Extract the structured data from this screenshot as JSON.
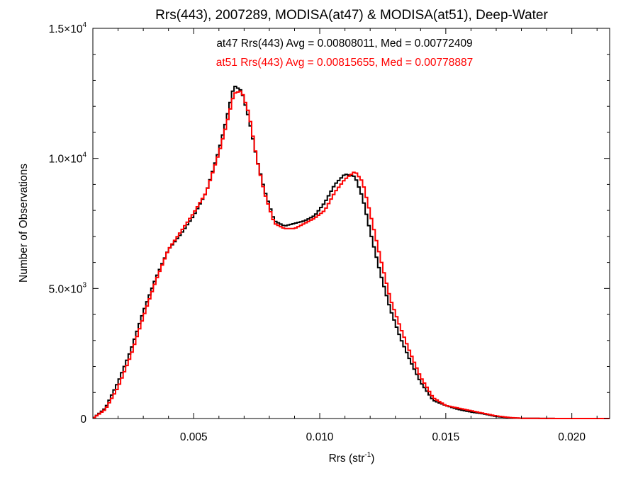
{
  "chart_data": {
    "type": "line",
    "title": "Rrs(443), 2007289, MODISA(at47) & MODISA(at51), Deep-Water",
    "xlabel_base": "Rrs (str",
    "xlabel_sup": "-1",
    "xlabel_tail": ")",
    "ylabel": "Number of Observations",
    "xlim": [
      0.001,
      0.0215
    ],
    "ylim": [
      0,
      15000
    ],
    "x_ticks": [
      {
        "value": 0.005,
        "label": "0.005"
      },
      {
        "value": 0.01,
        "label": "0.010"
      },
      {
        "value": 0.015,
        "label": "0.015"
      },
      {
        "value": 0.02,
        "label": "0.020"
      }
    ],
    "y_ticks": [
      {
        "value": 0,
        "base": "0",
        "exp": ""
      },
      {
        "value": 5000,
        "base": "5.0×10",
        "exp": "3"
      },
      {
        "value": 10000,
        "base": "1.0×10",
        "exp": "4"
      },
      {
        "value": 15000,
        "base": "1.5×10",
        "exp": "4"
      }
    ],
    "grid": false,
    "series": [
      {
        "name": "at47",
        "color": "#000000",
        "stats": "at47 Rrs(443) Avg = 0.00808011, Med = 0.00772409",
        "x": [
          0.001,
          0.0015,
          0.002,
          0.0025,
          0.003,
          0.0035,
          0.004,
          0.0045,
          0.005,
          0.0055,
          0.006,
          0.0063,
          0.0066,
          0.0069,
          0.0072,
          0.0075,
          0.0078,
          0.0082,
          0.0086,
          0.009,
          0.0094,
          0.0098,
          0.0102,
          0.0106,
          0.011,
          0.0114,
          0.0117,
          0.012,
          0.0124,
          0.0128,
          0.0132,
          0.0136,
          0.014,
          0.0145,
          0.015,
          0.0155,
          0.016,
          0.0165,
          0.017,
          0.0175,
          0.018,
          0.0185,
          0.019,
          0.02,
          0.0215
        ],
        "y": [
          0,
          400,
          1400,
          2600,
          4100,
          5400,
          6500,
          7100,
          7800,
          8700,
          10300,
          11500,
          12800,
          12600,
          11500,
          10000,
          8800,
          7600,
          7400,
          7500,
          7600,
          7800,
          8300,
          9000,
          9400,
          9300,
          8500,
          7200,
          5600,
          4200,
          3100,
          2200,
          1400,
          700,
          500,
          350,
          250,
          180,
          80,
          30,
          10,
          5,
          2,
          0,
          0
        ]
      },
      {
        "name": "at51",
        "color": "#ff0000",
        "stats": "at51 Rrs(443) Avg = 0.00815655, Med = 0.00778887",
        "x": [
          0.001,
          0.0015,
          0.002,
          0.0025,
          0.003,
          0.0035,
          0.004,
          0.0045,
          0.005,
          0.0055,
          0.006,
          0.0063,
          0.0066,
          0.0069,
          0.0072,
          0.0075,
          0.0078,
          0.0082,
          0.0086,
          0.009,
          0.0094,
          0.0098,
          0.0102,
          0.0106,
          0.011,
          0.0114,
          0.0117,
          0.012,
          0.0124,
          0.0128,
          0.0132,
          0.0136,
          0.014,
          0.0145,
          0.015,
          0.0155,
          0.016,
          0.0165,
          0.017,
          0.0175,
          0.018,
          0.0185,
          0.019,
          0.02,
          0.0215
        ],
        "y": [
          0,
          350,
          1200,
          2400,
          3900,
          5300,
          6500,
          7200,
          7900,
          8700,
          10200,
          11300,
          12500,
          12600,
          11700,
          10000,
          8700,
          7500,
          7300,
          7300,
          7500,
          7700,
          8000,
          8700,
          9200,
          9500,
          9100,
          7900,
          6200,
          4600,
          3500,
          2500,
          1600,
          800,
          500,
          400,
          300,
          200,
          100,
          40,
          10,
          5,
          2,
          0,
          0
        ]
      }
    ]
  }
}
